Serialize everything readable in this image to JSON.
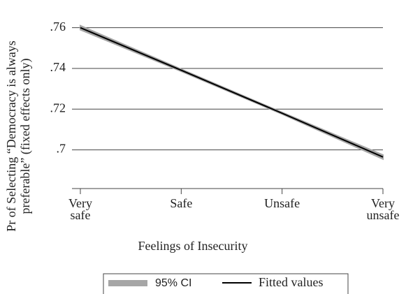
{
  "chart_data": {
    "type": "line",
    "ylabel": [
      "Pr of Selecting “Democracy is always",
      "preferable” (fixed effects only)"
    ],
    "xlabel": "Feelings of Insecurity",
    "categories": [
      "Very safe",
      "Safe",
      "Unsafe",
      "Very unsafe"
    ],
    "series": [
      {
        "name": "95% CI",
        "color": "#a6a6a6",
        "lower": [
          0.759,
          0.7386,
          0.7176,
          0.6955
        ],
        "upper": [
          0.761,
          0.7396,
          0.7184,
          0.6975
        ]
      },
      {
        "name": "Fitted values",
        "color": "#000000",
        "values": [
          0.76,
          0.7391,
          0.718,
          0.6965
        ]
      }
    ],
    "ylim": [
      0.681,
      0.764
    ],
    "yticks": [
      {
        "value": 0.7,
        "label": ".7"
      },
      {
        "value": 0.72,
        "label": ".72"
      },
      {
        "value": 0.74,
        "label": ".74"
      },
      {
        "value": 0.76,
        "label": ".76"
      }
    ],
    "grid": true
  }
}
